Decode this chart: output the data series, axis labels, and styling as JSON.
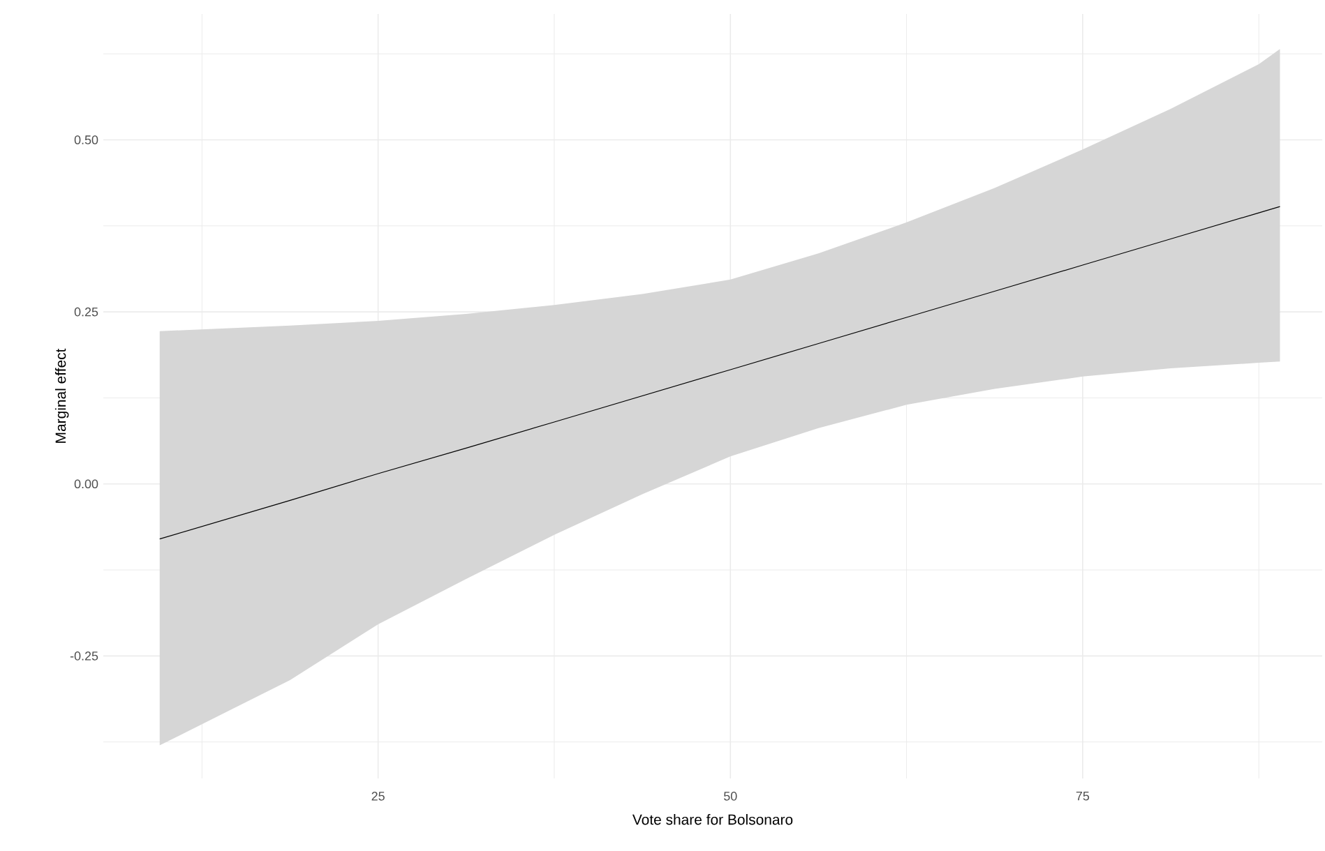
{
  "chart_data": {
    "type": "line",
    "xlabel": "Vote share for Bolsonaro",
    "ylabel": "Marginal effect",
    "x": [
      9.5,
      18.75,
      25,
      31.25,
      37.5,
      43.75,
      50,
      56.25,
      62.5,
      68.75,
      75,
      81.25,
      87.5,
      89
    ],
    "series": [
      {
        "color": "#000000",
        "values": [
          -0.08,
          -0.024,
          0.015,
          0.052,
          0.09,
          0.128,
          0.166,
          0.204,
          0.242,
          0.28,
          0.318,
          0.356,
          0.394,
          0.403
        ],
        "lower": [
          -0.38,
          -0.285,
          -0.204,
          -0.138,
          -0.074,
          -0.015,
          0.04,
          0.081,
          0.115,
          0.138,
          0.156,
          0.168,
          0.176,
          0.178
        ],
        "upper": [
          0.222,
          0.23,
          0.237,
          0.247,
          0.26,
          0.276,
          0.297,
          0.335,
          0.38,
          0.43,
          0.486,
          0.545,
          0.61,
          0.632
        ]
      }
    ],
    "xlim": [
      5.5,
      92
    ],
    "ylim": [
      -0.428,
      0.683
    ],
    "xticks": [
      25,
      50,
      75
    ],
    "yticks": [
      -0.25,
      {
        "value": 0,
        "label": "0.00"
      },
      0.25,
      {
        "value": 0.5,
        "label": "0.50"
      }
    ],
    "grid": true
  }
}
